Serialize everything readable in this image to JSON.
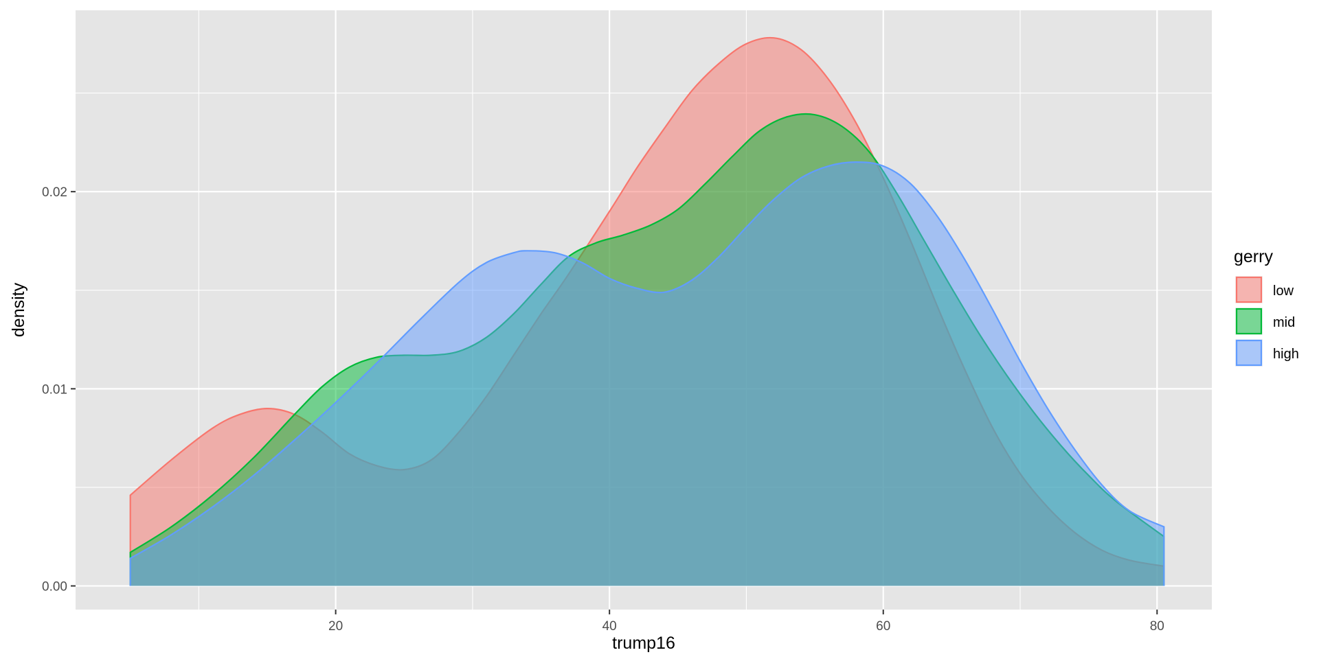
{
  "chart_data": {
    "type": "area",
    "subtype": "density",
    "xlabel": "trump16",
    "ylabel": "density",
    "xlim": [
      1.0,
      84.0
    ],
    "ylim": [
      -0.0012,
      0.0292
    ],
    "x_ticks": [
      20,
      40,
      60,
      80
    ],
    "x_tick_labels": [
      "20",
      "40",
      "60",
      "80"
    ],
    "y_ticks": [
      0.0,
      0.01,
      0.02
    ],
    "y_tick_labels": [
      "0.00",
      "0.01",
      "0.02"
    ],
    "grid": true,
    "legend": {
      "title": "gerry",
      "position": "right",
      "entries": [
        "low",
        "mid",
        "high"
      ]
    },
    "colors": {
      "low": "#F8766D",
      "mid": "#00BA38",
      "high": "#619CFF",
      "panel_bg": "#E5E5E5",
      "grid": "#FFFFFF"
    },
    "fill_alpha": 0.5,
    "series": [
      {
        "name": "low",
        "x": [
          5,
          8,
          11,
          13,
          15,
          17,
          19,
          21,
          23,
          25,
          27,
          29,
          31,
          33,
          35,
          37,
          40,
          42,
          44,
          46,
          48,
          50,
          52,
          54,
          56,
          58,
          60,
          62,
          64,
          66,
          68,
          70,
          72,
          74,
          76,
          78,
          80.5
        ],
        "y": [
          0.0046,
          0.0064,
          0.008,
          0.0087,
          0.009,
          0.0087,
          0.0078,
          0.0067,
          0.0061,
          0.0059,
          0.0064,
          0.0078,
          0.0096,
          0.0117,
          0.0138,
          0.0158,
          0.019,
          0.0212,
          0.0232,
          0.0251,
          0.0265,
          0.0275,
          0.0278,
          0.0272,
          0.0257,
          0.0235,
          0.0207,
          0.0175,
          0.0141,
          0.0109,
          0.008,
          0.0057,
          0.004,
          0.0027,
          0.0018,
          0.0013,
          0.001
        ]
      },
      {
        "name": "mid",
        "x": [
          5,
          8,
          11,
          14,
          17,
          19,
          21,
          23,
          25,
          27,
          29,
          31,
          33,
          35,
          37,
          39,
          41,
          43,
          45,
          47,
          49,
          51,
          53,
          55,
          57,
          59,
          61,
          63,
          65,
          67,
          69,
          71,
          73,
          75,
          77,
          80.5
        ],
        "y": [
          0.0017,
          0.003,
          0.0046,
          0.0065,
          0.0087,
          0.0101,
          0.0111,
          0.0116,
          0.0117,
          0.0117,
          0.0119,
          0.0126,
          0.0138,
          0.0153,
          0.0167,
          0.0174,
          0.0178,
          0.0183,
          0.0191,
          0.0204,
          0.0218,
          0.0231,
          0.0238,
          0.0239,
          0.0233,
          0.022,
          0.0199,
          0.0175,
          0.0151,
          0.0128,
          0.0107,
          0.0088,
          0.0071,
          0.0056,
          0.0043,
          0.0025
        ]
      },
      {
        "name": "high",
        "x": [
          5,
          8,
          11,
          14,
          17,
          20,
          23,
          26,
          29,
          31,
          33,
          34,
          36,
          38,
          40,
          42,
          44,
          46,
          48,
          50,
          52,
          54,
          56,
          58,
          60,
          62,
          64,
          66,
          68,
          70,
          72,
          74,
          76,
          78,
          80.5
        ],
        "y": [
          0.0014,
          0.0026,
          0.004,
          0.0056,
          0.0074,
          0.0093,
          0.0113,
          0.0134,
          0.0154,
          0.0164,
          0.0169,
          0.017,
          0.0169,
          0.0164,
          0.0156,
          0.0151,
          0.0149,
          0.0155,
          0.0167,
          0.0182,
          0.0196,
          0.0207,
          0.0213,
          0.0215,
          0.0213,
          0.0204,
          0.0187,
          0.0165,
          0.014,
          0.0114,
          0.009,
          0.0069,
          0.0051,
          0.0038,
          0.003
        ]
      }
    ]
  }
}
